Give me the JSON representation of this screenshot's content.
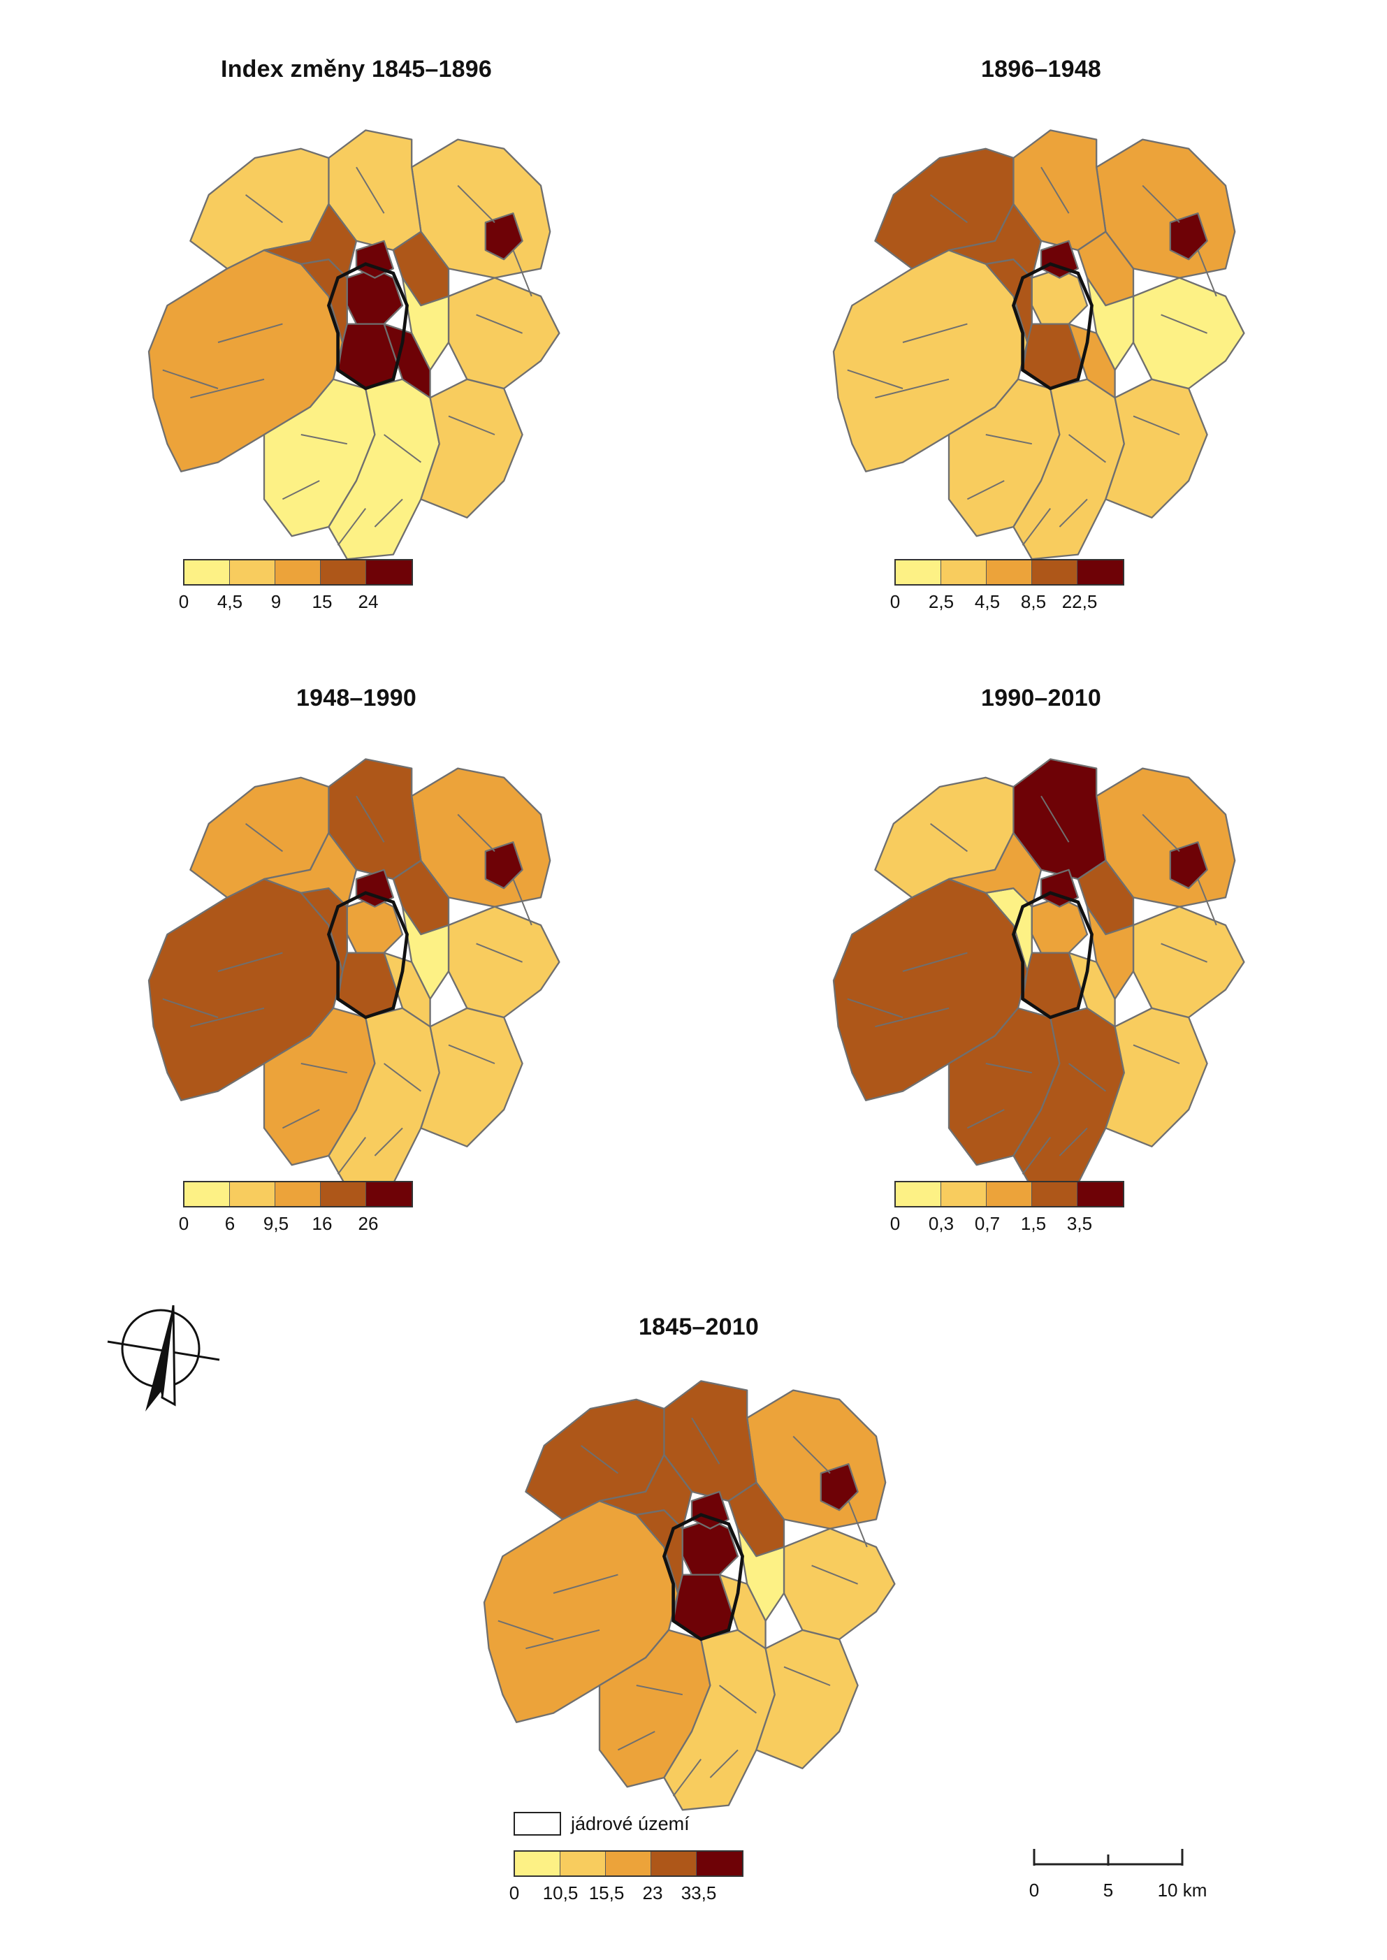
{
  "maps": [
    {
      "id": "p1845",
      "title": "Index změny 1845–1896",
      "legend_breaks": [
        "0",
        "4,5",
        "9",
        "15",
        "24"
      ],
      "palette": [
        "#fdf185",
        "#f8cc5e",
        "#eca33a",
        "#ae5719",
        "#6e0206"
      ],
      "zones": {
        "west": 2,
        "south": 0,
        "southwest": 0,
        "southeast": 1,
        "northwest": 1,
        "north": 1,
        "northeast": 1,
        "east": 1,
        "center": 4,
        "centerW": 3,
        "centerS": 4,
        "centerE": 0,
        "ne_patch": 3,
        "nw_patch": 3,
        "spur": 4,
        "hot1": 4,
        "hot2": 4
      }
    },
    {
      "id": "p1896",
      "title": "1896–1948",
      "legend_breaks": [
        "0",
        "2,5",
        "4,5",
        "8,5",
        "22,5"
      ],
      "palette": [
        "#fdf185",
        "#f8cc5e",
        "#eca33a",
        "#ae5719",
        "#6e0206"
      ],
      "zones": {
        "west": 1,
        "south": 1,
        "southwest": 1,
        "southeast": 1,
        "northwest": 3,
        "north": 2,
        "northeast": 2,
        "east": 0,
        "center": 1,
        "centerW": 3,
        "centerS": 3,
        "centerE": 0,
        "ne_patch": 2,
        "nw_patch": 3,
        "spur": 2,
        "hot1": 4,
        "hot2": 4
      }
    },
    {
      "id": "p1948",
      "title": "1948–1990",
      "legend_breaks": [
        "0",
        "6",
        "9,5",
        "16",
        "26"
      ],
      "palette": [
        "#fdf185",
        "#f8cc5e",
        "#eca33a",
        "#ae5719",
        "#6e0206"
      ],
      "zones": {
        "west": 3,
        "south": 1,
        "southwest": 2,
        "southeast": 1,
        "northwest": 2,
        "north": 3,
        "northeast": 2,
        "east": 1,
        "center": 2,
        "centerW": 3,
        "centerS": 3,
        "centerE": 0,
        "ne_patch": 3,
        "nw_patch": 2,
        "spur": 1,
        "hot1": 4,
        "hot2": 4
      }
    },
    {
      "id": "p1990",
      "title": "1990–2010",
      "legend_breaks": [
        "0",
        "0,3",
        "0,7",
        "1,5",
        "3,5"
      ],
      "palette": [
        "#fdf185",
        "#f8cc5e",
        "#eca33a",
        "#ae5719",
        "#6e0206"
      ],
      "zones": {
        "west": 3,
        "south": 3,
        "southwest": 3,
        "southeast": 1,
        "northwest": 1,
        "north": 4,
        "northeast": 2,
        "east": 1,
        "center": 2,
        "centerW": 0,
        "centerS": 3,
        "centerE": 2,
        "ne_patch": 3,
        "nw_patch": 2,
        "spur": 1,
        "hot1": 4,
        "hot2": 4
      }
    },
    {
      "id": "p1845_2010",
      "title": "1845–2010",
      "legend_breaks": [
        "0",
        "10,5",
        "15,5",
        "23",
        "33,5"
      ],
      "palette": [
        "#fdf185",
        "#f8cc5e",
        "#eca33a",
        "#ae5719",
        "#6e0206"
      ],
      "zones": {
        "west": 2,
        "south": 1,
        "southwest": 2,
        "southeast": 1,
        "northwest": 3,
        "north": 3,
        "northeast": 2,
        "east": 1,
        "center": 4,
        "centerW": 3,
        "centerS": 4,
        "centerE": 0,
        "ne_patch": 3,
        "nw_patch": 3,
        "spur": 1,
        "hot1": 4,
        "hot2": 4
      }
    }
  ],
  "core_legend_label": "jádrové území",
  "scale": {
    "ticks": [
      "0",
      "5",
      "10 km"
    ]
  },
  "colors": {
    "boundary": "#6f6f6f",
    "core_outline": "#111111"
  }
}
